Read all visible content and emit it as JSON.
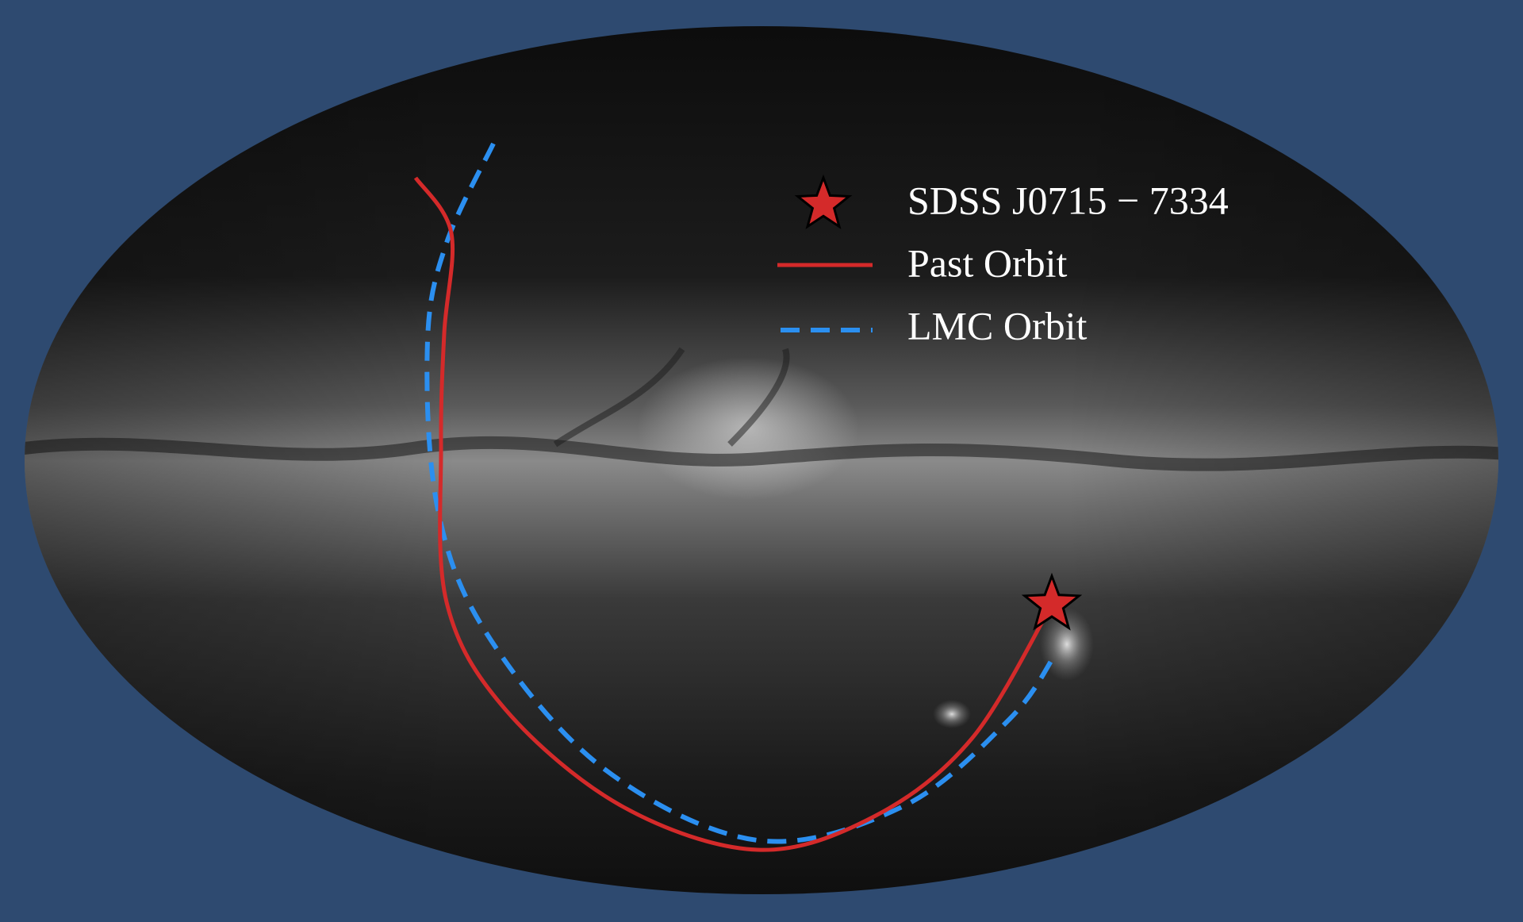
{
  "legend": {
    "items": [
      {
        "label": "SDSS J0715 − 7334"
      },
      {
        "label": "Past Orbit"
      },
      {
        "label": "LMC Orbit"
      }
    ]
  }
}
